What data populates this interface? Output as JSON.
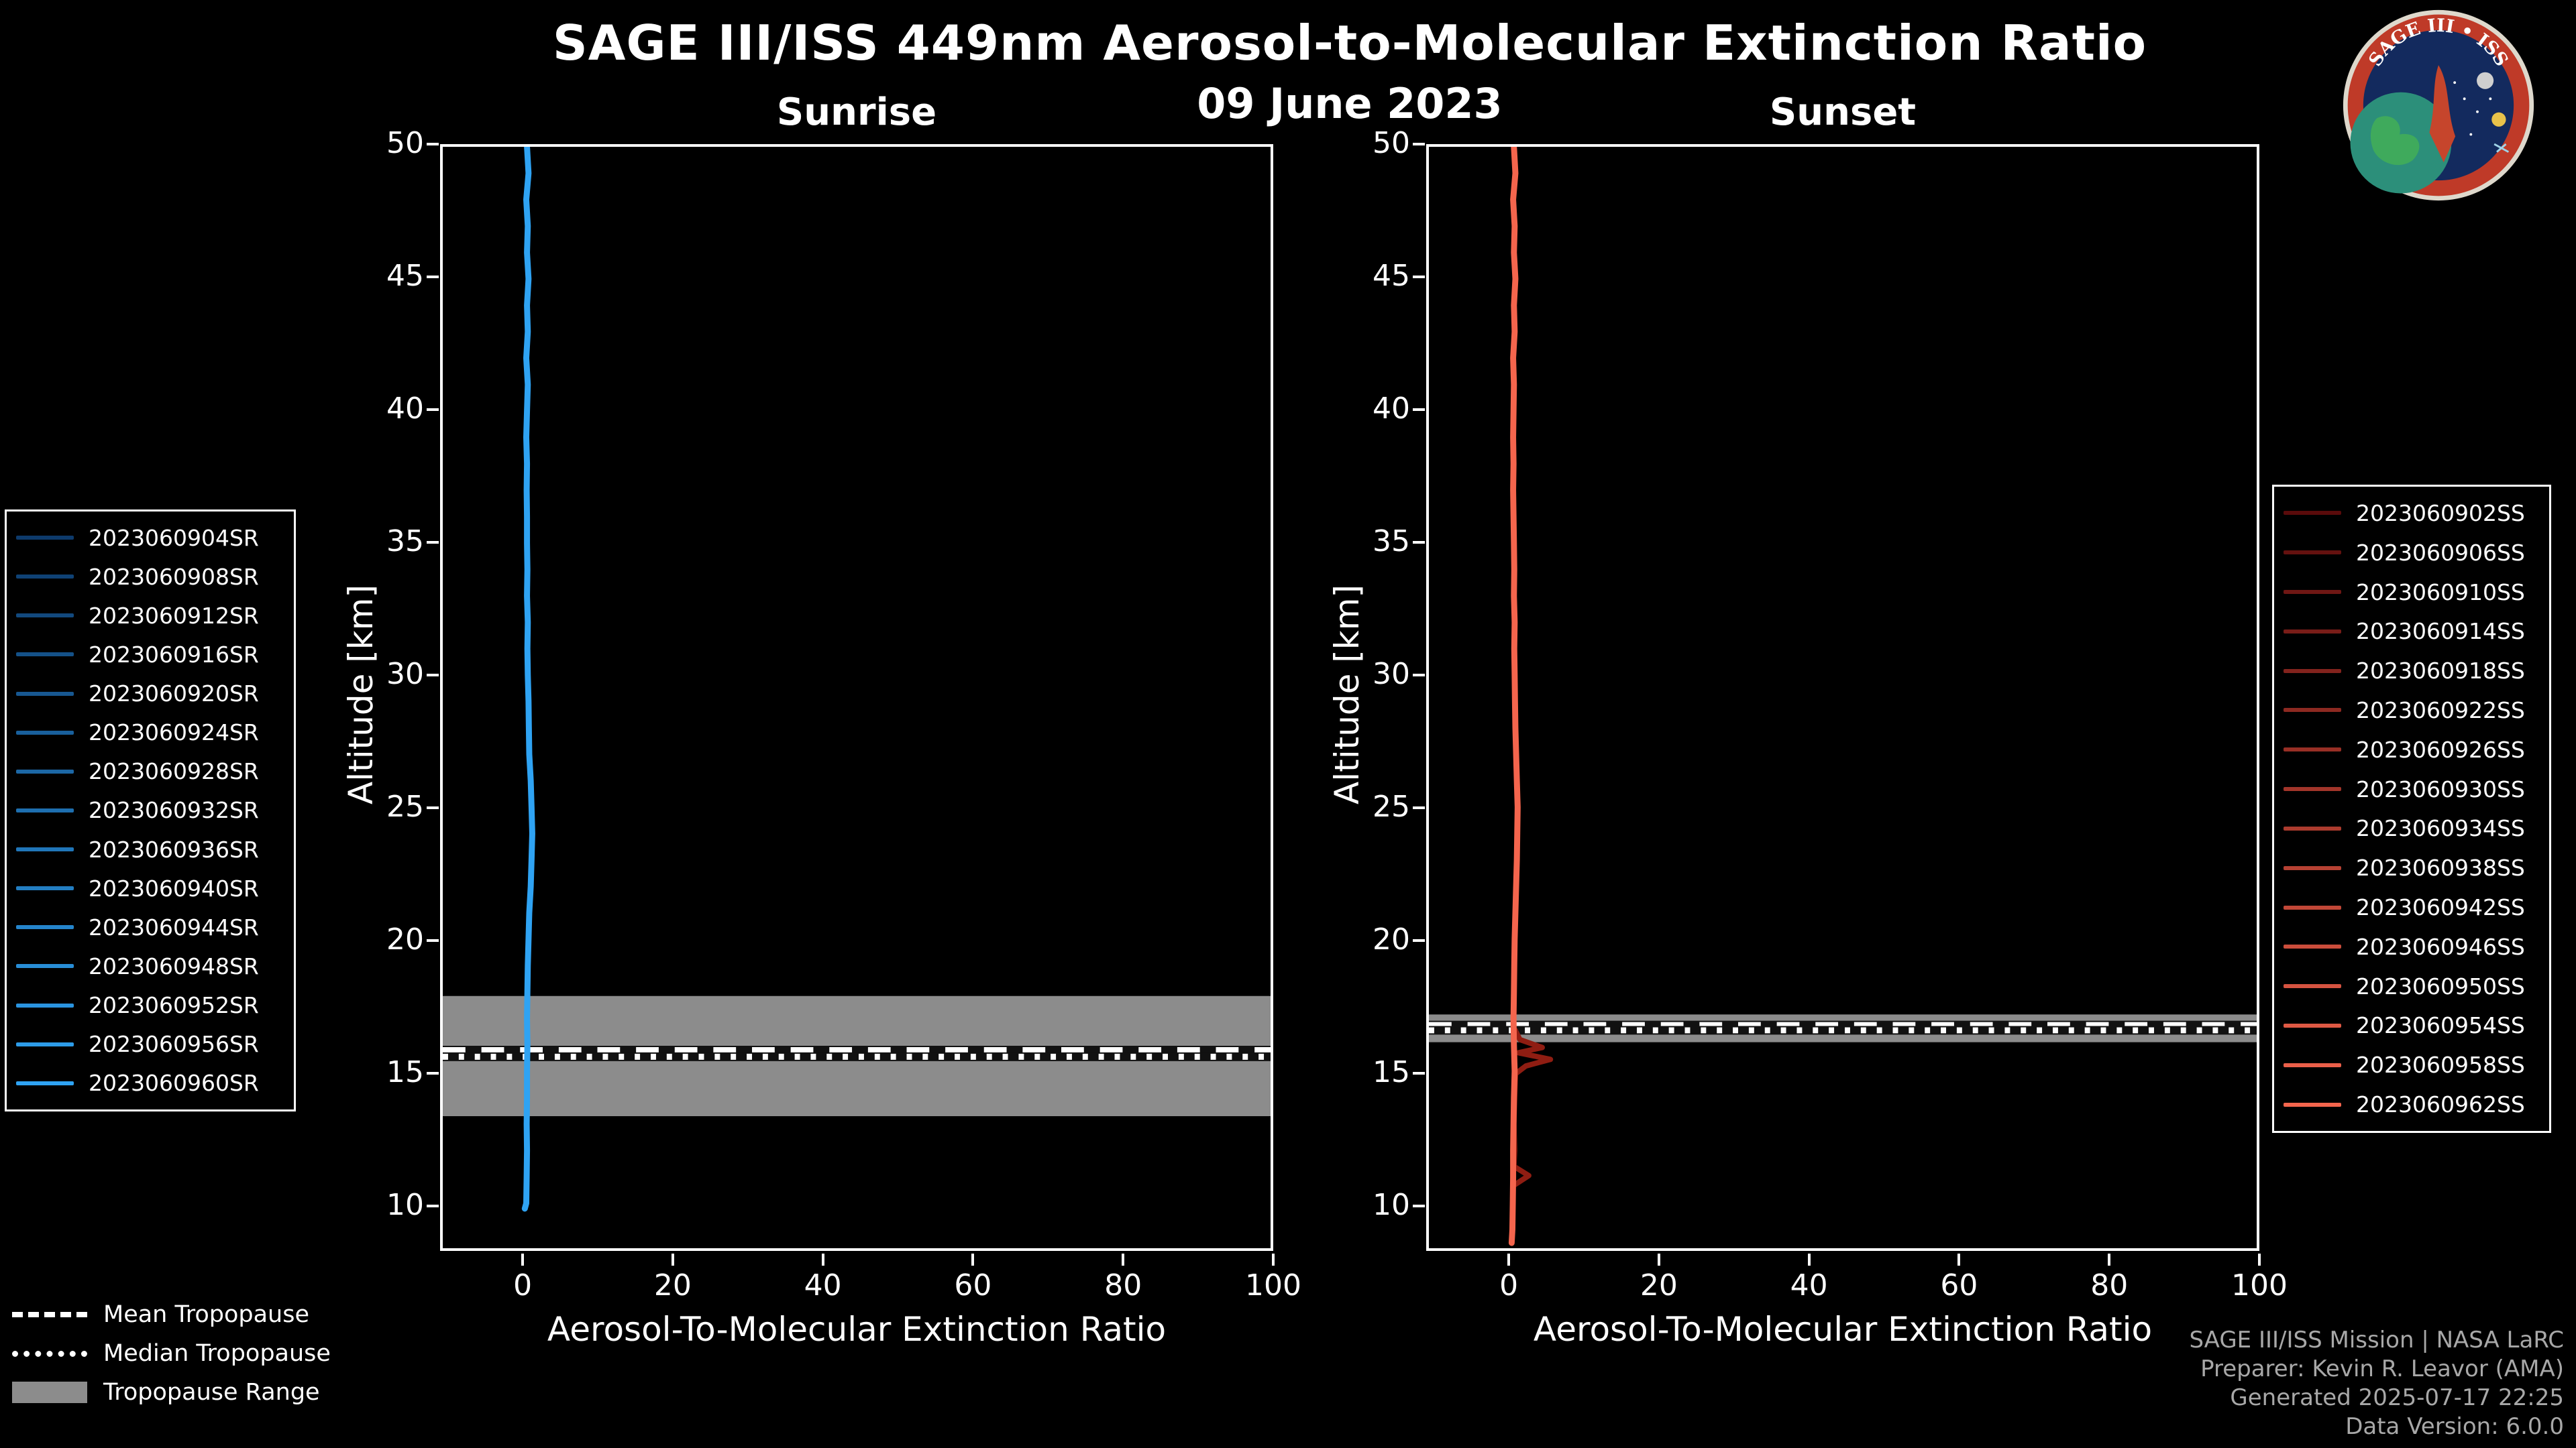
{
  "header": {
    "title": "SAGE III/ISS 449nm Aerosol-to-Molecular Extinction Ratio",
    "date": "09 June 2023"
  },
  "logo": {
    "name": "sage-iii-iss-mission-patch",
    "text": "SAGE III • ISS"
  },
  "tropopause_legend": {
    "mean": "Mean Tropopause",
    "median": "Median Tropopause",
    "range": "Tropopause Range"
  },
  "footer": {
    "lines": [
      "SAGE III/ISS Mission | NASA LaRC",
      "Preparer: Kevin R. Leavor (AMA)",
      "Generated 2025-07-17 22:25",
      "Data Version: 6.0.0"
    ]
  },
  "chart_data": [
    {
      "type": "line",
      "panel": "sunrise",
      "title": "Sunrise",
      "xlabel": "Aerosol-To-Molecular Extinction Ratio",
      "ylabel": "Altitude [km]",
      "xlim": [
        -11,
        100
      ],
      "ylim": [
        8.3,
        50
      ],
      "xticks": [
        0,
        20,
        40,
        60,
        80,
        100
      ],
      "yticks": [
        10,
        15,
        20,
        25,
        30,
        35,
        40,
        45,
        50
      ],
      "grid": false,
      "legend_position": "outside-left",
      "series_names": [
        "2023060904SR",
        "2023060908SR",
        "2023060912SR",
        "2023060916SR",
        "2023060920SR",
        "2023060924SR",
        "2023060928SR",
        "2023060932SR",
        "2023060936SR",
        "2023060940SR",
        "2023060944SR",
        "2023060948SR",
        "2023060952SR",
        "2023060956SR",
        "2023060960SR"
      ],
      "series_color_start": "#0d3a6b",
      "series_color_end": "#2fa3f3",
      "line_color": "#2fa3f3",
      "tropopause": {
        "range_km": [
          13.3,
          17.85
        ],
        "mean_km": 15.8,
        "median_km": 15.55
      },
      "representative_profile": {
        "altitude_km": [
          50,
          49,
          48,
          47,
          46,
          45,
          44,
          43,
          42,
          41,
          40,
          39,
          38,
          37,
          36,
          35,
          34,
          33,
          32,
          31,
          30,
          29,
          28,
          27,
          26,
          25,
          24,
          23,
          22,
          21,
          20,
          19,
          18,
          17,
          16,
          15,
          14,
          13,
          12,
          11,
          10,
          9.8
        ],
        "ratio": [
          0.3,
          0.5,
          0.2,
          0.4,
          0.3,
          0.5,
          0.3,
          0.4,
          0.2,
          0.4,
          0.3,
          0.2,
          0.3,
          0.25,
          0.3,
          0.3,
          0.35,
          0.3,
          0.4,
          0.35,
          0.4,
          0.5,
          0.55,
          0.6,
          0.8,
          0.9,
          1.0,
          0.9,
          0.8,
          0.6,
          0.5,
          0.4,
          0.35,
          0.3,
          0.35,
          0.3,
          0.3,
          0.25,
          0.3,
          0.25,
          0.2,
          0.0
        ]
      },
      "features": []
    },
    {
      "type": "line",
      "panel": "sunset",
      "title": "Sunset",
      "xlabel": "Aerosol-To-Molecular Extinction Ratio",
      "ylabel": "Altitude [km]",
      "xlim": [
        -11,
        100
      ],
      "ylim": [
        8.3,
        50
      ],
      "xticks": [
        0,
        20,
        40,
        60,
        80,
        100
      ],
      "yticks": [
        10,
        15,
        20,
        25,
        30,
        35,
        40,
        45,
        50
      ],
      "grid": false,
      "legend_position": "outside-right",
      "series_names": [
        "2023060902SS",
        "2023060906SS",
        "2023060910SS",
        "2023060914SS",
        "2023060918SS",
        "2023060922SS",
        "2023060926SS",
        "2023060930SS",
        "2023060934SS",
        "2023060938SS",
        "2023060942SS",
        "2023060946SS",
        "2023060950SS",
        "2023060954SS",
        "2023060958SS",
        "2023060962SS"
      ],
      "series_color_start": "#5a0b0b",
      "series_color_end": "#f4654d",
      "line_color": "#f4654d",
      "tropopause": {
        "range_km": [
          16.1,
          17.15
        ],
        "mean_km": 16.75,
        "median_km": 16.55
      },
      "representative_profile": {
        "altitude_km": [
          50,
          49,
          48,
          47,
          46,
          45,
          44,
          43,
          42,
          41,
          40,
          39,
          38,
          37,
          36,
          35,
          34,
          33,
          32,
          31,
          30,
          29,
          28,
          27,
          26,
          25,
          24,
          23,
          22,
          21,
          20,
          19,
          18,
          17,
          16,
          15,
          14,
          13,
          12,
          11,
          10,
          9,
          8.5
        ],
        "ratio": [
          0.4,
          0.6,
          0.3,
          0.5,
          0.4,
          0.6,
          0.4,
          0.5,
          0.3,
          0.4,
          0.35,
          0.3,
          0.35,
          0.3,
          0.35,
          0.4,
          0.45,
          0.4,
          0.5,
          0.45,
          0.5,
          0.55,
          0.6,
          0.7,
          0.8,
          0.9,
          0.85,
          0.8,
          0.7,
          0.6,
          0.5,
          0.45,
          0.4,
          0.35,
          0.4,
          0.5,
          0.4,
          0.35,
          0.3,
          0.3,
          0.25,
          0.2,
          0.1
        ]
      },
      "features": [
        {
          "name": "dark-red low-altitude enhancement",
          "color": "#8f1d12",
          "altitude_km": [
            16.6,
            16.2,
            15.9,
            15.7,
            15.45,
            15.2,
            14.9,
            14.0,
            13.0,
            12.0,
            11.4,
            11.05,
            10.7
          ],
          "ratio": [
            0.5,
            1.2,
            4.2,
            1.0,
            5.3,
            2.0,
            0.6,
            0.5,
            0.4,
            0.5,
            0.4,
            2.4,
            0.5
          ]
        }
      ]
    }
  ]
}
